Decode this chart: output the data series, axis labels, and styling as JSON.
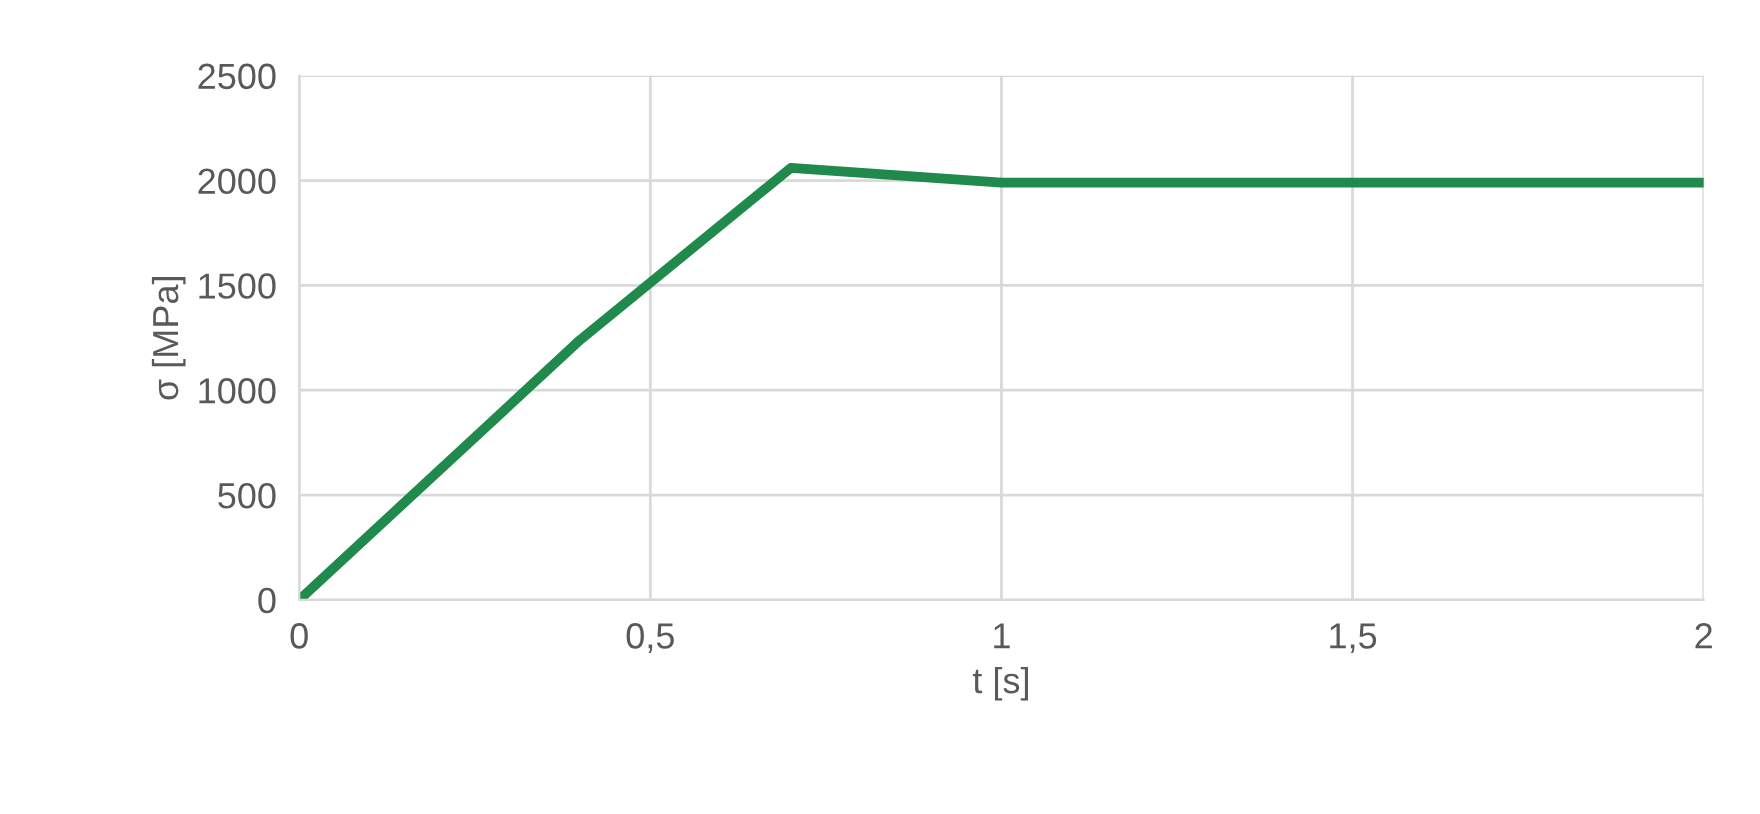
{
  "chart_data": {
    "type": "line",
    "xlabel": "t [s]",
    "ylabel": "σ [MPa]",
    "x": [
      0,
      0.4,
      0.7,
      1,
      2
    ],
    "series": [
      {
        "color": "#1f8a4c",
        "values": [
          0,
          1240,
          2060,
          1990,
          1990
        ]
      }
    ],
    "xlim": [
      0,
      2
    ],
    "ylim": [
      0,
      2500
    ],
    "xticks": [
      0,
      {
        "value": 0.5,
        "label": "0,5"
      },
      1,
      {
        "value": 1.5,
        "label": "1,5"
      },
      2
    ],
    "yticks": [
      0,
      500,
      1000,
      1500,
      2000,
      2500
    ],
    "grid": true,
    "marker": "none",
    "line_style": "solid"
  }
}
